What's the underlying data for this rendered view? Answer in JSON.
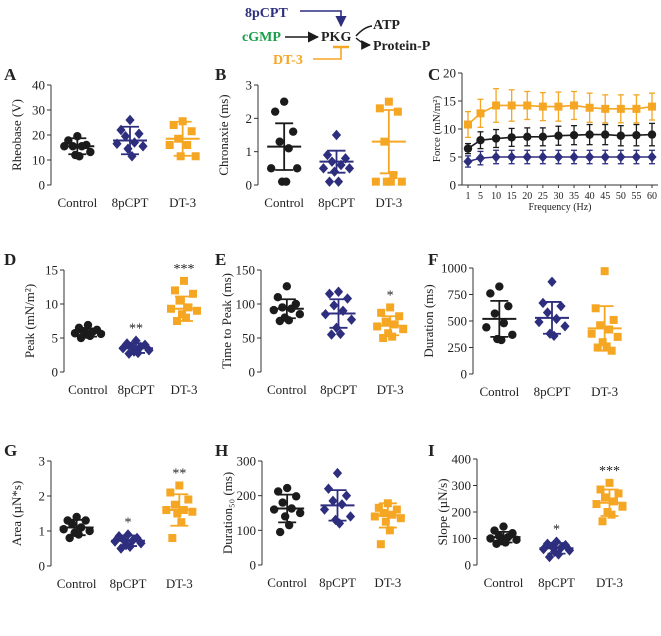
{
  "colors": {
    "control": "#1b1b1b",
    "8pcpt": "#2e2e7e",
    "dt3": "#f5a623",
    "cgmp": "#1b9e4b"
  },
  "pathway": {
    "inhibitor_top": "8pCPT",
    "activator": "cGMP",
    "kinase": "PKG",
    "inhibitor_bottom": "DT-3",
    "outputs": [
      "ATP",
      "Protein-P"
    ]
  },
  "chart_data": [
    {
      "id": "A",
      "type": "scatter",
      "panel_label": "A",
      "ylabel": "Rheobase (V)",
      "ylim": [
        0,
        40
      ],
      "yticks": [
        0,
        10,
        20,
        30,
        40
      ],
      "categories": [
        "Control",
        "8pCPT",
        "DT-3"
      ],
      "groups": [
        {
          "name": "Control",
          "marker": "circle",
          "color": "#1b1b1b",
          "mean": 15.5,
          "sd": 3.2,
          "values": [
            19.5,
            17.8,
            16.0,
            15.5,
            15.5,
            15.5,
            13.2,
            12.0,
            11.5
          ]
        },
        {
          "name": "8pCPT",
          "marker": "diamond",
          "color": "#2e2e7e",
          "mean": 17.8,
          "sd": 5.5,
          "values": [
            26.0,
            22.0,
            20.5,
            19.5,
            17.0,
            16.5,
            15.5,
            14.5,
            11.5
          ]
        },
        {
          "name": "DT-3",
          "marker": "square",
          "color": "#f5a623",
          "mean": 18.5,
          "sd": 6.8,
          "values": [
            25.5,
            24.0,
            21.5,
            18.5,
            16.0,
            16.0,
            11.5,
            11.5
          ]
        }
      ],
      "significance": [
        "",
        "",
        ""
      ]
    },
    {
      "id": "B",
      "type": "scatter",
      "panel_label": "B",
      "ylabel": "Chronaxie (ms)",
      "ylim": [
        0,
        3
      ],
      "yticks": [
        0,
        1,
        2,
        3
      ],
      "categories": [
        "Control",
        "8pCPT",
        "DT-3"
      ],
      "groups": [
        {
          "name": "Control",
          "marker": "circle",
          "color": "#1b1b1b",
          "mean": 1.15,
          "sd": 0.7,
          "values": [
            2.5,
            2.2,
            1.6,
            1.3,
            1.1,
            0.5,
            0.5,
            0.1,
            0.1
          ]
        },
        {
          "name": "8pCPT",
          "marker": "diamond",
          "color": "#2e2e7e",
          "mean": 0.7,
          "sd": 0.33,
          "values": [
            1.5,
            0.9,
            0.8,
            0.7,
            0.6,
            0.5,
            0.5,
            0.4,
            0.1,
            0.1
          ]
        },
        {
          "name": "DT-3",
          "marker": "square",
          "color": "#f5a623",
          "mean": 1.3,
          "sd": 0.95,
          "values": [
            2.5,
            2.3,
            2.2,
            1.3,
            0.3,
            0.1,
            0.1,
            0.1,
            0.1
          ]
        }
      ],
      "significance": [
        "",
        "",
        ""
      ]
    },
    {
      "id": "C",
      "type": "line",
      "panel_label": "C",
      "ylabel": "Force (mN/m²)",
      "xlabel": "Frequency (Hz)",
      "ylim": [
        0,
        20
      ],
      "yticks": [
        0,
        5,
        10,
        15,
        20
      ],
      "x": [
        1,
        5,
        10,
        15,
        20,
        25,
        30,
        35,
        40,
        45,
        50,
        55,
        60
      ],
      "series": [
        {
          "name": "DT-3",
          "color": "#f5a623",
          "marker": "square",
          "values": [
            10.8,
            12.8,
            14.2,
            14.2,
            14.2,
            14.0,
            14.0,
            14.2,
            13.8,
            13.6,
            13.6,
            13.6,
            14.0
          ],
          "err": [
            2.3,
            2.5,
            3.0,
            2.8,
            2.5,
            2.5,
            2.6,
            2.5,
            2.6,
            2.5,
            2.5,
            2.5,
            2.4
          ]
        },
        {
          "name": "Control",
          "color": "#1b1b1b",
          "marker": "circle",
          "values": [
            6.5,
            8.0,
            8.3,
            8.5,
            8.6,
            8.6,
            8.8,
            8.9,
            9.0,
            9.0,
            8.8,
            8.9,
            9.0
          ],
          "err": [
            0.9,
            1.5,
            1.6,
            1.6,
            1.6,
            1.6,
            1.7,
            1.7,
            1.8,
            1.8,
            1.8,
            1.9,
            2.0
          ]
        },
        {
          "name": "8pCPT",
          "color": "#2e2e7e",
          "marker": "diamond",
          "values": [
            4.2,
            4.8,
            5.0,
            5.0,
            5.0,
            5.0,
            5.0,
            5.0,
            5.0,
            5.0,
            5.0,
            5.0,
            5.0
          ],
          "err": [
            1.0,
            1.2,
            1.2,
            1.2,
            1.2,
            1.2,
            1.2,
            1.2,
            1.2,
            1.2,
            1.2,
            1.2,
            1.2
          ]
        }
      ]
    },
    {
      "id": "D",
      "type": "scatter",
      "panel_label": "D",
      "ylabel": "Peak (mN/m²)",
      "ylim": [
        0,
        15
      ],
      "yticks": [
        0,
        5,
        10,
        15
      ],
      "categories": [
        "Control",
        "8pCPT",
        "DT-3"
      ],
      "groups": [
        {
          "name": "Control",
          "marker": "circle",
          "color": "#1b1b1b",
          "mean": 5.8,
          "sd": 0.6,
          "values": [
            6.9,
            6.5,
            6.2,
            6.0,
            5.9,
            5.7,
            5.6,
            5.5,
            5.3,
            5.0
          ]
        },
        {
          "name": "8pCPT",
          "marker": "diamond",
          "color": "#2e2e7e",
          "mean": 3.5,
          "sd": 0.7,
          "values": [
            4.6,
            4.2,
            4.0,
            3.8,
            3.7,
            3.5,
            3.2,
            3.0,
            2.8,
            2.7
          ]
        },
        {
          "name": "DT-3",
          "marker": "square",
          "color": "#f5a623",
          "mean": 9.3,
          "sd": 1.8,
          "values": [
            13.4,
            12.0,
            11.5,
            10.5,
            9.5,
            9.3,
            9.0,
            8.5,
            8.0,
            7.5
          ]
        }
      ],
      "significance": [
        "",
        "**",
        "***"
      ]
    },
    {
      "id": "E",
      "type": "scatter",
      "panel_label": "E",
      "ylabel": "Time to Peak (ms)",
      "ylim": [
        0,
        150
      ],
      "yticks": [
        0,
        50,
        100,
        150
      ],
      "categories": [
        "Control",
        "8pCPT",
        "DT-3"
      ],
      "groups": [
        {
          "name": "Control",
          "marker": "circle",
          "color": "#1b1b1b",
          "mean": 93,
          "sd": 14,
          "values": [
            126,
            110,
            100,
            95,
            93,
            91,
            85,
            80,
            76,
            75
          ]
        },
        {
          "name": "8pCPT",
          "marker": "diamond",
          "color": "#2e2e7e",
          "mean": 86,
          "sd": 21,
          "values": [
            118,
            115,
            108,
            98,
            90,
            85,
            77,
            65,
            56,
            55
          ]
        },
        {
          "name": "DT-3",
          "marker": "square",
          "color": "#f5a623",
          "mean": 68,
          "sd": 14,
          "values": [
            95,
            87,
            82,
            74,
            70,
            67,
            63,
            57,
            52,
            50
          ]
        }
      ],
      "significance": [
        "",
        "",
        "*"
      ]
    },
    {
      "id": "F",
      "type": "scatter",
      "panel_label": "F",
      "ylabel": "Duration (ms)",
      "ylim": [
        0,
        1000
      ],
      "yticks": [
        0,
        250,
        500,
        750,
        1000
      ],
      "categories": [
        "Control",
        "8pCPT",
        "DT-3"
      ],
      "groups": [
        {
          "name": "Control",
          "marker": "circle",
          "color": "#1b1b1b",
          "mean": 520,
          "sd": 170,
          "values": [
            825,
            760,
            640,
            570,
            480,
            440,
            370,
            330,
            320
          ]
        },
        {
          "name": "8pCPT",
          "marker": "diamond",
          "color": "#2e2e7e",
          "mean": 530,
          "sd": 150,
          "values": [
            870,
            670,
            640,
            580,
            520,
            490,
            450,
            380,
            360
          ]
        },
        {
          "name": "DT-3",
          "marker": "square",
          "color": "#f5a623",
          "mean": 430,
          "sd": 210,
          "values": [
            970,
            620,
            510,
            460,
            420,
            380,
            350,
            300,
            260,
            250,
            220
          ]
        }
      ],
      "significance": [
        "",
        "",
        ""
      ]
    },
    {
      "id": "G",
      "type": "scatter",
      "panel_label": "G",
      "ylabel": "Area (µN*s)",
      "ylim": [
        0,
        3
      ],
      "yticks": [
        0,
        1,
        2,
        3
      ],
      "categories": [
        "Control",
        "8pCPT",
        "DT-3"
      ],
      "groups": [
        {
          "name": "Control",
          "marker": "circle",
          "color": "#1b1b1b",
          "mean": 1.1,
          "sd": 0.22,
          "values": [
            1.4,
            1.3,
            1.3,
            1.2,
            1.1,
            1.05,
            1.0,
            0.95,
            0.9,
            0.8
          ]
        },
        {
          "name": "8pCPT",
          "marker": "diamond",
          "color": "#2e2e7e",
          "mean": 0.72,
          "sd": 0.15,
          "values": [
            0.9,
            0.85,
            0.8,
            0.75,
            0.72,
            0.7,
            0.65,
            0.6,
            0.55,
            0.5
          ]
        },
        {
          "name": "DT-3",
          "marker": "square",
          "color": "#f5a623",
          "mean": 1.6,
          "sd": 0.45,
          "values": [
            2.3,
            2.1,
            1.9,
            1.75,
            1.6,
            1.6,
            1.55,
            1.5,
            1.25,
            0.8
          ]
        }
      ],
      "significance": [
        "",
        "*",
        "**"
      ]
    },
    {
      "id": "H",
      "type": "scatter",
      "panel_label": "H",
      "ylabel": "Duration₅₀ (ms)",
      "ylim": [
        0,
        300
      ],
      "yticks": [
        0,
        100,
        200,
        300
      ],
      "categories": [
        "Control",
        "8pCPT",
        "DT-3"
      ],
      "groups": [
        {
          "name": "Control",
          "marker": "circle",
          "color": "#1b1b1b",
          "mean": 163,
          "sd": 40,
          "values": [
            222,
            212,
            198,
            180,
            163,
            160,
            150,
            140,
            115,
            95
          ]
        },
        {
          "name": "8pCPT",
          "marker": "diamond",
          "color": "#2e2e7e",
          "mean": 172,
          "sd": 44,
          "values": [
            265,
            220,
            200,
            185,
            175,
            160,
            140,
            130,
            120
          ]
        },
        {
          "name": "DT-3",
          "marker": "square",
          "color": "#f5a623",
          "mean": 143,
          "sd": 35,
          "values": [
            178,
            165,
            160,
            150,
            145,
            140,
            135,
            125,
            100,
            60
          ]
        }
      ],
      "significance": [
        "",
        "",
        ""
      ]
    },
    {
      "id": "I",
      "type": "scatter",
      "panel_label": "I",
      "ylabel": "Slope (µN/s)",
      "ylim": [
        0,
        400
      ],
      "yticks": [
        0,
        100,
        200,
        300,
        400
      ],
      "categories": [
        "Control",
        "8pCPT",
        "DT-3"
      ],
      "groups": [
        {
          "name": "Control",
          "marker": "circle",
          "color": "#1b1b1b",
          "mean": 105,
          "sd": 20,
          "values": [
            145,
            130,
            120,
            110,
            105,
            100,
            95,
            90,
            85,
            80
          ]
        },
        {
          "name": "8pCPT",
          "marker": "diamond",
          "color": "#2e2e7e",
          "mean": 63,
          "sd": 20,
          "values": [
            88,
            80,
            75,
            70,
            65,
            60,
            55,
            50,
            40,
            30
          ]
        },
        {
          "name": "DT-3",
          "marker": "square",
          "color": "#f5a623",
          "mean": 235,
          "sd": 50,
          "values": [
            310,
            285,
            270,
            255,
            240,
            230,
            220,
            200,
            190,
            165
          ]
        }
      ],
      "significance": [
        "",
        "*",
        "***"
      ]
    }
  ]
}
